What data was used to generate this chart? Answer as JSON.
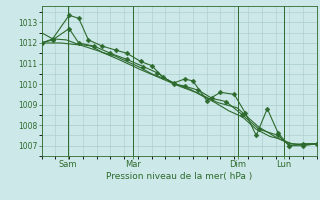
{
  "background_color": "#cde8e8",
  "grid_color": "#a8cccc",
  "line_color": "#2d6a2d",
  "text_color": "#2d6a2d",
  "xlabel": "Pression niveau de la mer( hPa )",
  "ylim": [
    1006.5,
    1013.8
  ],
  "yticks": [
    1007,
    1008,
    1009,
    1010,
    1011,
    1012,
    1013
  ],
  "xlim": [
    0.0,
    1.0
  ],
  "xtick_positions": [
    0.095,
    0.333,
    0.714,
    0.88
  ],
  "xtick_labels": [
    "Sam",
    "Mar",
    "Dim",
    "Lun"
  ],
  "vline_positions": [
    0.095,
    0.333,
    0.714,
    0.88
  ],
  "series": [
    {
      "x": [
        0.0,
        0.04,
        0.1,
        0.135,
        0.17,
        0.22,
        0.27,
        0.31,
        0.36,
        0.4,
        0.44,
        0.48,
        0.52,
        0.55,
        0.6,
        0.65,
        0.7,
        0.74,
        0.78,
        0.82,
        0.86,
        0.9,
        0.95,
        1.0
      ],
      "y": [
        1012.0,
        1012.2,
        1013.35,
        1013.2,
        1012.15,
        1011.85,
        1011.65,
        1011.5,
        1011.1,
        1010.9,
        1010.35,
        1010.05,
        1010.25,
        1010.15,
        1009.2,
        1009.6,
        1009.5,
        1008.6,
        1007.5,
        1008.8,
        1007.6,
        1007.0,
        1007.1,
        1007.1
      ],
      "marker": true,
      "markersize": 2.5
    },
    {
      "x": [
        0.0,
        0.04,
        0.1,
        0.135,
        0.19,
        0.25,
        0.31,
        0.37,
        0.42,
        0.48,
        0.52,
        0.57,
        0.62,
        0.67,
        0.73,
        0.79,
        0.86,
        0.9,
        0.95,
        1.0
      ],
      "y": [
        1012.0,
        1012.15,
        1012.7,
        1012.0,
        1011.85,
        1011.5,
        1011.2,
        1010.85,
        1010.55,
        1010.0,
        1009.9,
        1009.7,
        1009.3,
        1009.15,
        1008.5,
        1007.8,
        1007.5,
        1007.0,
        1007.0,
        1007.1
      ],
      "marker": true,
      "markersize": 2.5
    },
    {
      "x": [
        0.0,
        0.07,
        0.14,
        0.21,
        0.28,
        0.36,
        0.43,
        0.5,
        0.57,
        0.64,
        0.71,
        0.79,
        0.86,
        0.91,
        0.95,
        1.0
      ],
      "y": [
        1012.0,
        1012.0,
        1011.9,
        1011.6,
        1011.2,
        1010.7,
        1010.3,
        1009.9,
        1009.55,
        1009.1,
        1008.85,
        1007.9,
        1007.35,
        1007.1,
        1007.05,
        1007.1
      ],
      "marker": false,
      "markersize": 0
    },
    {
      "x": [
        0.0,
        0.04,
        0.09,
        0.13,
        0.18,
        0.22,
        0.27,
        0.31,
        0.36,
        0.4,
        0.45,
        0.49,
        0.54,
        0.58,
        0.63,
        0.68,
        0.73,
        0.78,
        0.83,
        0.86,
        0.9,
        0.95,
        1.0
      ],
      "y": [
        1012.5,
        1012.2,
        1012.15,
        1011.95,
        1011.85,
        1011.55,
        1011.35,
        1011.1,
        1010.8,
        1010.5,
        1010.25,
        1010.0,
        1009.75,
        1009.45,
        1009.1,
        1008.7,
        1008.4,
        1007.8,
        1007.45,
        1007.35,
        1007.1,
        1007.05,
        1007.1
      ],
      "marker": false,
      "markersize": 0
    }
  ]
}
